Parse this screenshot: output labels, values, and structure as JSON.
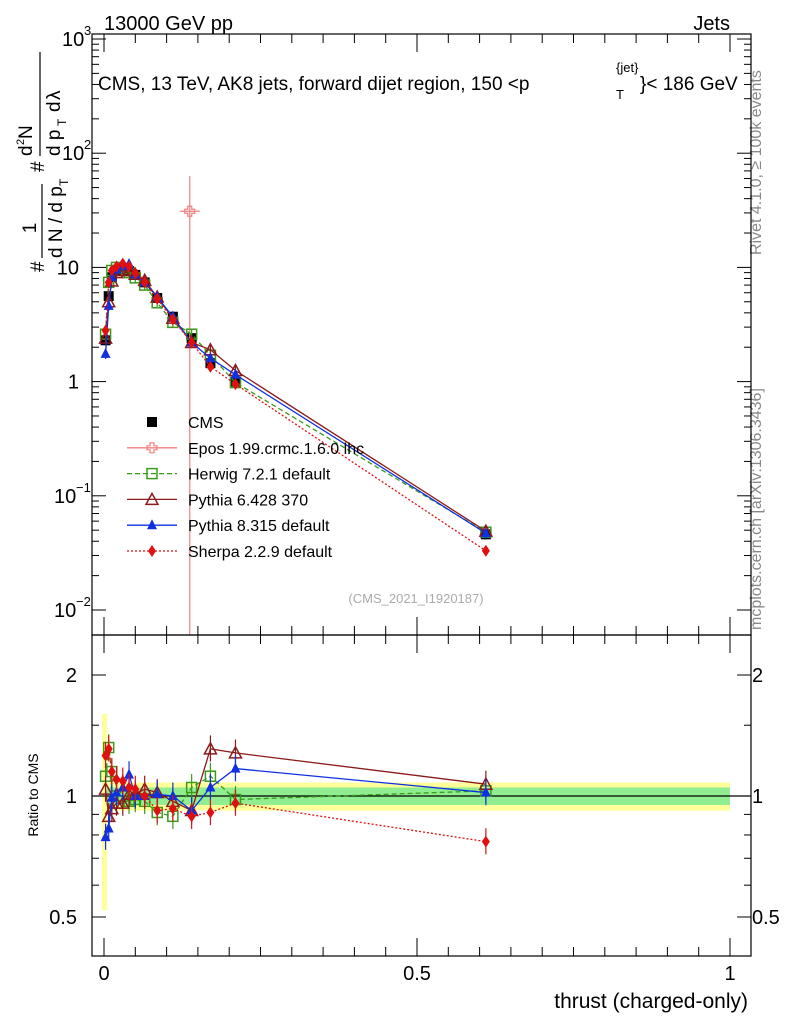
{
  "header": {
    "left": "13000 GeV pp",
    "right": "Jets"
  },
  "side_labels": {
    "rivet": "Rivet 4.1.0, ≥ 100k events",
    "mcplots": "mcplots.cern.ch [arXiv:1306.3436]"
  },
  "chart_data": [
    {
      "type": "scatter",
      "title": "CMS, 13 TeV, AK8 jets, forward dijet region, 150 <p_T^{jet}< 186 GeV",
      "watermark": "(CMS_2021_I1920187)",
      "xlabel": "thrust (charged-only)",
      "ylabel": "1/(dN/dp_T) d²N/(dp_T dλ)",
      "yscale": "log",
      "xlim": [
        -0.02,
        1.0
      ],
      "ylim": [
        0.006,
        1000
      ],
      "ytick_labels": [
        "10^-2",
        "10^-1",
        "1",
        "10",
        "10^2",
        "10^3"
      ],
      "series": [
        {
          "name": "CMS",
          "color": "#000000",
          "marker": "square-filled",
          "x": [
            0.0025,
            0.0075,
            0.0125,
            0.02,
            0.03,
            0.04,
            0.05,
            0.065,
            0.085,
            0.11,
            0.14,
            0.17,
            0.21,
            0.61
          ],
          "y": [
            2.3,
            5.6,
            8.2,
            9.4,
            9.8,
            9.3,
            8.6,
            7.4,
            5.4,
            3.7,
            2.4,
            1.45,
            1.0,
            0.046
          ]
        },
        {
          "name": "Epos 1.99.crmc.1.6.0 lhc",
          "color": "#f08080",
          "marker": "cross-open",
          "x": [
            0.137
          ],
          "y": [
            31
          ],
          "yerr_low": [
            31
          ],
          "yerr_high": [
            32
          ]
        },
        {
          "name": "Herwig 7.2.1 default",
          "color": "#3a9a1a",
          "marker": "square-open",
          "line": "dashed",
          "x": [
            0.0025,
            0.0075,
            0.0125,
            0.02,
            0.03,
            0.04,
            0.05,
            0.065,
            0.085,
            0.11,
            0.14,
            0.17,
            0.21,
            0.61
          ],
          "y": [
            2.6,
            7.4,
            9.4,
            10.0,
            9.8,
            9.0,
            8.1,
            7.0,
            4.9,
            3.3,
            2.6,
            1.7,
            0.98,
            0.048
          ]
        },
        {
          "name": "Pythia 6.428 370",
          "color": "#8b1a1a",
          "marker": "triangle-open",
          "line": "solid",
          "x": [
            0.0025,
            0.0075,
            0.0125,
            0.02,
            0.03,
            0.04,
            0.05,
            0.065,
            0.085,
            0.11,
            0.14,
            0.17,
            0.21,
            0.61
          ],
          "y": [
            2.4,
            5.0,
            7.6,
            9.0,
            9.4,
            9.4,
            8.7,
            7.7,
            5.5,
            3.6,
            2.2,
            1.9,
            1.25,
            0.049
          ]
        },
        {
          "name": "Pythia 8.315 default",
          "color": "#1030e0",
          "marker": "triangle-filled",
          "line": "solid",
          "x": [
            0.0025,
            0.0075,
            0.0125,
            0.02,
            0.03,
            0.04,
            0.05,
            0.065,
            0.085,
            0.11,
            0.14,
            0.17,
            0.21,
            0.61
          ],
          "y": [
            1.75,
            4.6,
            8.2,
            9.6,
            10.3,
            10.7,
            8.7,
            7.4,
            5.5,
            3.7,
            2.2,
            1.6,
            1.15,
            0.047
          ]
        },
        {
          "name": "Sherpa 2.2.9 default",
          "color": "#e01010",
          "marker": "diamond-filled",
          "line": "dotted",
          "x": [
            0.0025,
            0.0075,
            0.0125,
            0.02,
            0.03,
            0.04,
            0.05,
            0.065,
            0.085,
            0.11,
            0.14,
            0.17,
            0.21,
            0.61
          ],
          "y": [
            2.8,
            7.4,
            9.4,
            10.2,
            10.8,
            10.2,
            8.9,
            7.4,
            5.3,
            3.5,
            2.2,
            1.35,
            0.95,
            0.033
          ]
        }
      ]
    },
    {
      "type": "scatter",
      "ylabel": "Ratio to CMS",
      "xlabel": "thrust (charged-only)",
      "yscale": "log",
      "ylim": [
        0.42,
        2.5
      ],
      "xlim": [
        -0.02,
        1.0
      ],
      "ytick_labels": [
        "0.5",
        "1",
        "2"
      ],
      "xtick_labels": [
        "0",
        "0.5",
        "1"
      ],
      "band_inner": 0.05,
      "band_outer": 0.08,
      "series": [
        {
          "name": "Herwig 7.2.1 default",
          "color": "#3a9a1a",
          "marker": "square-open",
          "line": "dashed",
          "x": [
            0.0025,
            0.0075,
            0.0125,
            0.02,
            0.03,
            0.04,
            0.05,
            0.065,
            0.085,
            0.11,
            0.14,
            0.17,
            0.21,
            0.61
          ],
          "y": [
            1.12,
            1.32,
            1.15,
            1.06,
            1.0,
            0.97,
            0.98,
            0.97,
            0.91,
            0.89,
            1.05,
            1.12,
            0.98,
            1.03
          ]
        },
        {
          "name": "Pythia 6.428 370",
          "color": "#8b1a1a",
          "marker": "triangle-open",
          "line": "solid",
          "x": [
            0.0025,
            0.0075,
            0.0125,
            0.02,
            0.03,
            0.04,
            0.05,
            0.065,
            0.085,
            0.11,
            0.14,
            0.17,
            0.21,
            0.61
          ],
          "y": [
            1.04,
            0.89,
            0.93,
            0.96,
            0.96,
            1.01,
            1.01,
            1.04,
            1.02,
            0.97,
            0.92,
            1.31,
            1.28,
            1.07
          ]
        },
        {
          "name": "Pythia 8.315 default",
          "color": "#1030e0",
          "marker": "triangle-filled",
          "line": "solid",
          "x": [
            0.0025,
            0.0075,
            0.0125,
            0.02,
            0.03,
            0.04,
            0.05,
            0.065,
            0.085,
            0.11,
            0.14,
            0.17,
            0.21,
            0.61
          ],
          "y": [
            0.79,
            0.83,
            0.99,
            1.02,
            1.05,
            1.13,
            1.0,
            1.0,
            1.01,
            1.0,
            0.92,
            1.05,
            1.17,
            1.02
          ]
        },
        {
          "name": "Sherpa 2.2.9 default",
          "color": "#e01010",
          "marker": "diamond-filled",
          "line": "dotted",
          "x": [
            0.0025,
            0.0075,
            0.0125,
            0.02,
            0.03,
            0.04,
            0.05,
            0.065,
            0.085,
            0.11,
            0.14,
            0.17,
            0.21,
            0.61
          ],
          "y": [
            1.26,
            1.31,
            1.15,
            1.1,
            1.09,
            1.05,
            1.04,
            1.0,
            0.92,
            0.93,
            0.89,
            0.91,
            0.96,
            0.77
          ]
        }
      ]
    }
  ]
}
